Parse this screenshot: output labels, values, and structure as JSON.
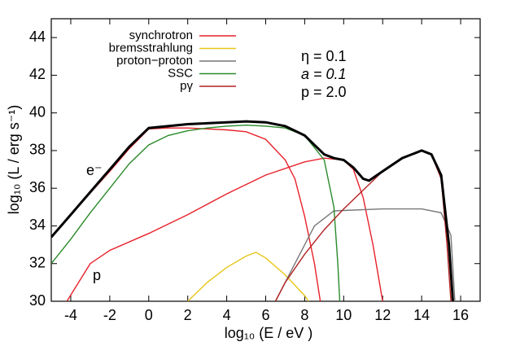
{
  "chart_data": {
    "type": "line",
    "x_label": "log₁₀ (E / eV )",
    "y_label": "log₁₀ (L / erg s⁻¹)",
    "annotations": [
      "η = 0.1",
      "a = 0.1",
      "p = 2.0",
      "e⁻",
      "p"
    ],
    "xlim": [
      -5,
      17
    ],
    "ylim": [
      30,
      45
    ],
    "xticks": [
      -4,
      -2,
      0,
      2,
      4,
      6,
      8,
      10,
      12,
      14,
      16
    ],
    "yticks": [
      30,
      32,
      34,
      36,
      38,
      40,
      42,
      44
    ],
    "series": [
      {
        "name": "synchrotron",
        "color": "#e8202a",
        "x": [
          -5,
          -4,
          -2,
          -1,
          0,
          1,
          2,
          3,
          4,
          5,
          6,
          7,
          7.5,
          8,
          8.5,
          8.8,
          null,
          -4.2,
          -3,
          -2,
          0,
          2,
          4,
          6,
          8,
          9,
          10,
          10.5,
          11,
          11.5,
          12
        ],
        "values": [
          33.4,
          34.6,
          36.9,
          38.1,
          39.15,
          39.2,
          39.2,
          39.15,
          39.1,
          39.0,
          38.6,
          37.5,
          36.5,
          34.5,
          32,
          30,
          null,
          30,
          32,
          32.7,
          33.6,
          34.6,
          35.7,
          36.7,
          37.4,
          37.6,
          37.5,
          37,
          35.5,
          33,
          30
        ]
      },
      {
        "name": "bremsstrahlung",
        "color": "#e6c619",
        "x": [
          2,
          3,
          4,
          5,
          5.5,
          6,
          7,
          8,
          8.2
        ],
        "values": [
          30,
          31,
          31.8,
          32.4,
          32.6,
          32.3,
          31.4,
          30.3,
          30
        ]
      },
      {
        "name": "proton−proton",
        "color": "#777777",
        "x": [
          6.5,
          7.5,
          8.5,
          9.5,
          12,
          14,
          15,
          15.5,
          15.7
        ],
        "values": [
          30,
          32,
          34,
          34.8,
          34.9,
          34.9,
          34.7,
          33.5,
          30
        ]
      },
      {
        "name": "SSC",
        "color": "#2a8a2a",
        "x": [
          -5,
          -4,
          -3,
          -2,
          -1,
          0,
          1,
          2,
          3,
          4,
          5,
          6,
          7,
          8,
          9,
          9.5,
          9.7,
          9.8
        ],
        "values": [
          32,
          33.3,
          34.7,
          36,
          37.3,
          38.3,
          38.8,
          39.05,
          39.2,
          39.3,
          39.35,
          39.3,
          39.2,
          38.8,
          37.5,
          35,
          32,
          30
        ]
      },
      {
        "name": "pγ",
        "color": "#b22222",
        "x": [
          6.5,
          7,
          8,
          9,
          10,
          11,
          12,
          13,
          14,
          14.5,
          15,
          15.3,
          15.5
        ],
        "values": [
          30,
          31,
          32.5,
          33.8,
          34.9,
          35.9,
          36.9,
          37.6,
          38.0,
          37.8,
          36.5,
          33,
          30
        ]
      },
      {
        "color": "#000000",
        "x": [
          -5,
          -4,
          -2,
          -1,
          0,
          2,
          4,
          5,
          6,
          7,
          8,
          9,
          9.5,
          10,
          10.5,
          11,
          11.3,
          12,
          13,
          14,
          14.5,
          15,
          15.4,
          15.6
        ],
        "values": [
          33.4,
          34.6,
          37,
          38.2,
          39.2,
          39.4,
          39.5,
          39.55,
          39.5,
          39.3,
          38.8,
          37.8,
          37.6,
          37.5,
          37.1,
          36.5,
          36.4,
          36.9,
          37.6,
          38.0,
          37.8,
          36.7,
          33,
          30
        ]
      }
    ]
  }
}
